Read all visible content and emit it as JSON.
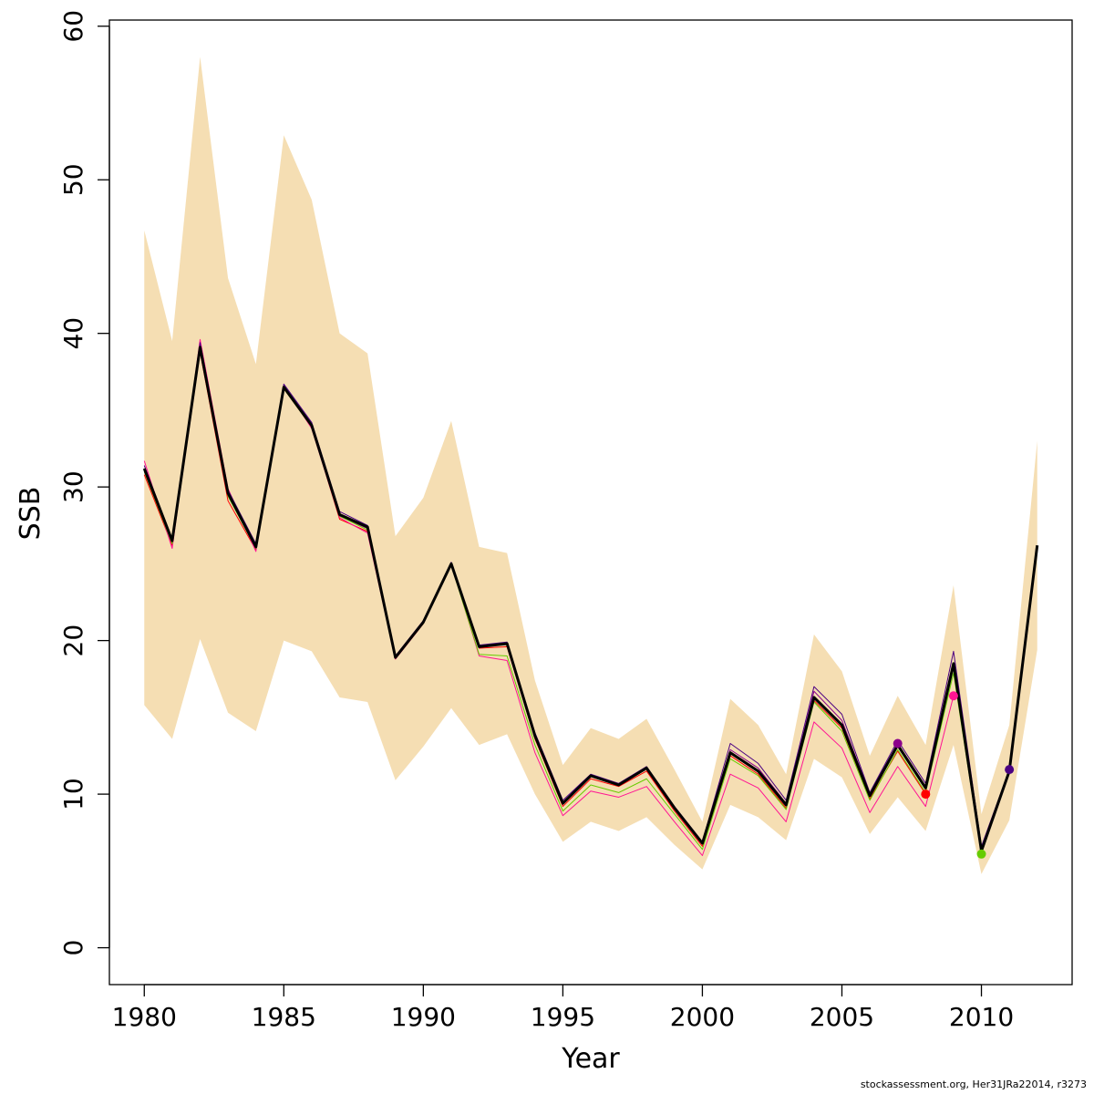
{
  "chart_data": {
    "type": "line",
    "xlabel": "Year",
    "ylabel": "SSB",
    "xlim": [
      1978.75,
      2013.25
    ],
    "ylim": [
      -2.4,
      60.4
    ],
    "x_ticks": [
      1980,
      1985,
      1990,
      1995,
      2000,
      2005,
      2010
    ],
    "y_ticks": [
      0,
      10,
      20,
      30,
      40,
      50,
      60
    ],
    "band_color": "#F5DEB3",
    "confidence_band": {
      "years": [
        1980,
        1981,
        1982,
        1983,
        1984,
        1985,
        1986,
        1987,
        1988,
        1989,
        1990,
        1991,
        1992,
        1993,
        1994,
        1995,
        1996,
        1997,
        1998,
        1999,
        2000,
        2001,
        2002,
        2003,
        2004,
        2005,
        2006,
        2007,
        2008,
        2009,
        2010,
        2011,
        2012
      ],
      "upper": [
        46.7,
        39.5,
        58.0,
        43.6,
        38.0,
        52.9,
        48.7,
        40.0,
        38.7,
        26.8,
        29.3,
        34.3,
        26.1,
        25.7,
        17.4,
        11.9,
        14.3,
        13.6,
        14.9,
        11.6,
        8.2,
        16.2,
        14.5,
        11.3,
        20.4,
        18.0,
        12.5,
        16.4,
        13.2,
        23.6,
        8.7,
        14.5,
        33.0
      ],
      "lower": [
        15.8,
        13.6,
        20.1,
        15.3,
        14.1,
        20.0,
        19.3,
        16.3,
        16.0,
        10.9,
        13.1,
        15.6,
        13.2,
        13.9,
        10.0,
        6.9,
        8.2,
        7.6,
        8.5,
        6.7,
        5.1,
        9.3,
        8.5,
        7.0,
        12.3,
        11.1,
        7.4,
        9.8,
        7.6,
        13.2,
        4.8,
        8.3,
        19.4
      ]
    },
    "series": [
      {
        "name": "final",
        "color": "#000000",
        "width": 3,
        "x": [
          1980,
          1981,
          1982,
          1983,
          1984,
          1985,
          1986,
          1987,
          1988,
          1989,
          1990,
          1991,
          1992,
          1993,
          1994,
          1995,
          1996,
          1997,
          1998,
          1999,
          2000,
          2001,
          2002,
          2003,
          2004,
          2005,
          2006,
          2007,
          2008,
          2009,
          2010,
          2011,
          2012
        ],
        "values": [
          31.2,
          26.5,
          39.1,
          29.6,
          26.1,
          36.5,
          34.0,
          28.2,
          27.4,
          18.9,
          21.2,
          25.0,
          19.6,
          19.8,
          13.8,
          9.4,
          11.2,
          10.6,
          11.7,
          9.1,
          6.8,
          12.7,
          11.5,
          9.3,
          16.3,
          14.5,
          9.9,
          13.2,
          10.4,
          18.5,
          6.3,
          11.5,
          26.2
        ]
      },
      {
        "name": "peel-2011",
        "color": "#4B0082",
        "width": 1,
        "x": [
          1980,
          1981,
          1982,
          1983,
          1984,
          1985,
          1986,
          1987,
          1988,
          1989,
          1990,
          1991,
          1992,
          1993,
          1994,
          1995,
          1996,
          1997,
          1998,
          1999,
          2000,
          2001,
          2002,
          2003,
          2004,
          2005,
          2006,
          2007,
          2008,
          2009,
          2010,
          2011
        ],
        "values": [
          31.4,
          26.6,
          39.4,
          29.8,
          26.3,
          36.7,
          34.2,
          28.4,
          27.5,
          19.0,
          21.3,
          25.1,
          19.7,
          19.9,
          14.0,
          9.6,
          11.3,
          10.7,
          11.8,
          9.2,
          6.9,
          13.3,
          12.0,
          9.6,
          17.0,
          15.2,
          10.1,
          13.5,
          10.7,
          19.3,
          6.6,
          11.6
        ],
        "end_point": [
          2011,
          11.6
        ]
      },
      {
        "name": "peel-2010",
        "color": "#66CC00",
        "width": 1,
        "x": [
          1980,
          1981,
          1982,
          1983,
          1984,
          1985,
          1986,
          1987,
          1988,
          1989,
          1990,
          1991,
          1992,
          1993,
          1994,
          1995,
          1996,
          1997,
          1998,
          1999,
          2000,
          2001,
          2002,
          2003,
          2004,
          2005,
          2006,
          2007,
          2008,
          2009,
          2010
        ],
        "values": [
          31.0,
          26.3,
          39.0,
          29.4,
          26.0,
          36.4,
          33.9,
          28.1,
          27.2,
          18.9,
          21.1,
          24.9,
          19.1,
          19.0,
          13.2,
          8.9,
          10.6,
          10.1,
          11.0,
          8.7,
          6.4,
          12.3,
          11.2,
          9.0,
          16.0,
          14.1,
          9.6,
          12.9,
          10.1,
          17.9,
          6.1
        ],
        "end_point": [
          2010,
          6.1
        ]
      },
      {
        "name": "peel-2009",
        "color": "#FF1493",
        "width": 1,
        "x": [
          1980,
          1981,
          1982,
          1983,
          1984,
          1985,
          1986,
          1987,
          1988,
          1989,
          1990,
          1991,
          1992,
          1993,
          1994,
          1995,
          1996,
          1997,
          1998,
          1999,
          2000,
          2001,
          2002,
          2003,
          2004,
          2005,
          2006,
          2007,
          2008,
          2009
        ],
        "values": [
          31.7,
          26.0,
          39.6,
          29.9,
          25.8,
          36.6,
          33.8,
          28.0,
          27.0,
          18.8,
          21.1,
          25.0,
          19.0,
          18.7,
          12.7,
          8.6,
          10.2,
          9.8,
          10.5,
          8.2,
          6.0,
          11.3,
          10.4,
          8.2,
          14.7,
          13.0,
          8.8,
          11.8,
          9.2,
          16.4
        ],
        "end_point": [
          2009,
          16.4
        ]
      },
      {
        "name": "peel-2008",
        "color": "#FF0000",
        "width": 1,
        "x": [
          1980,
          1981,
          1982,
          1983,
          1984,
          1985,
          1986,
          1987,
          1988,
          1989,
          1990,
          1991,
          1992,
          1993,
          1994,
          1995,
          1996,
          1997,
          1998,
          1999,
          2000,
          2001,
          2002,
          2003,
          2004,
          2005,
          2006,
          2007,
          2008
        ],
        "values": [
          30.8,
          26.2,
          38.8,
          29.1,
          25.9,
          36.4,
          33.9,
          27.9,
          27.1,
          18.8,
          21.1,
          24.9,
          19.5,
          19.6,
          13.6,
          9.2,
          11.0,
          10.5,
          11.5,
          8.9,
          6.6,
          12.5,
          11.3,
          9.1,
          16.1,
          14.3,
          9.7,
          12.8,
          10.0
        ],
        "end_point": [
          2008,
          10.0
        ]
      },
      {
        "name": "peel-2007",
        "color": "#8B008B",
        "width": 1,
        "x": [
          1980,
          1981,
          1982,
          1983,
          1984,
          1985,
          1986,
          1987,
          1988,
          1989,
          1990,
          1991,
          1992,
          1993,
          1994,
          1995,
          1996,
          1997,
          1998,
          1999,
          2000,
          2001,
          2002,
          2003,
          2004,
          2005,
          2006,
          2007
        ],
        "values": [
          31.0,
          26.4,
          39.2,
          29.5,
          26.0,
          36.5,
          34.0,
          28.1,
          27.3,
          18.9,
          21.2,
          25.0,
          19.6,
          19.8,
          13.8,
          9.4,
          11.2,
          10.6,
          11.7,
          9.1,
          6.8,
          12.9,
          11.7,
          9.4,
          16.7,
          14.8,
          10.0,
          13.3
        ],
        "end_point": [
          2007,
          13.3
        ]
      }
    ]
  },
  "footer": "stockassessment.org, Her31JRa22014, r3273"
}
